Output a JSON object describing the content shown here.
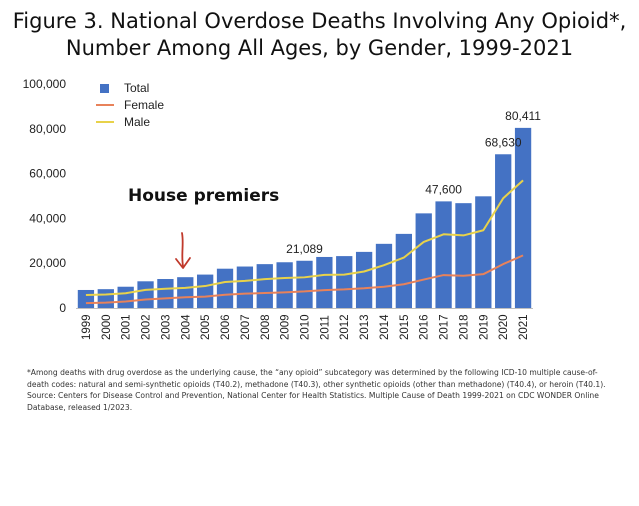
{
  "title": {
    "line1": "Figure 3. National Overdose Deaths Involving Any Opioid*,",
    "line2": "Number Among All Ages, by Gender, 1999-2021"
  },
  "annotation": "House premiers",
  "footnote": "*Among deaths with drug overdose as the underlying cause, the “any opioid” subcategory was determined by the following ICD-10 multiple cause-of-death codes: natural and semi-synthetic opioids (T40.2), methadone (T40.3), other synthetic opioids (other than methadone) (T40.4), or heroin (T40.1). Source: Centers for Disease Control and Prevention, National Center for Health Statistics. Multiple Cause of Death 1999-2021 on CDC WONDER Online Database, released 1/2023.",
  "colors": {
    "total": "#4472C4",
    "female": "#E8825A",
    "male": "#E8D24A",
    "arrow": "#C0392B"
  },
  "chart_data": {
    "type": "bar",
    "categories": [
      "1999",
      "2000",
      "2001",
      "2002",
      "2003",
      "2004",
      "2005",
      "2006",
      "2007",
      "2008",
      "2009",
      "2010",
      "2011",
      "2012",
      "2013",
      "2014",
      "2015",
      "2016",
      "2017",
      "2018",
      "2019",
      "2020",
      "2021"
    ],
    "series": [
      {
        "name": "Total",
        "kind": "bar",
        "values": [
          8048,
          8407,
          9496,
          11920,
          12940,
          13756,
          14918,
          17545,
          18516,
          19582,
          20422,
          21089,
          22784,
          23166,
          25052,
          28647,
          33091,
          42249,
          47600,
          46802,
          49860,
          68630,
          80411
        ]
      },
      {
        "name": "Female",
        "kind": "line",
        "values": [
          2200,
          2400,
          2900,
          3800,
          4300,
          4800,
          5100,
          5900,
          6400,
          6700,
          7000,
          7400,
          8000,
          8300,
          8800,
          9500,
          10600,
          12700,
          14700,
          14400,
          15100,
          19600,
          23500
        ]
      },
      {
        "name": "Male",
        "kind": "line",
        "values": [
          5800,
          6000,
          6600,
          8100,
          8600,
          9000,
          9800,
          11600,
          12100,
          12900,
          13400,
          13700,
          14800,
          14900,
          16300,
          19100,
          22500,
          29500,
          32900,
          32400,
          34700,
          49000,
          57000
        ]
      }
    ],
    "data_labels": [
      {
        "category": "2010",
        "text": "21,089"
      },
      {
        "category": "2017",
        "text": "47,600"
      },
      {
        "category": "2020",
        "text": "68,630"
      },
      {
        "category": "2021",
        "text": "80,411"
      }
    ],
    "y_ticks": [
      "0",
      "20,000",
      "40,000",
      "60,000",
      "80,000",
      "100,000"
    ],
    "ylim": [
      0,
      100000
    ],
    "legend": [
      "Total",
      "Female",
      "Male"
    ],
    "legend_position": "top-left",
    "xlabel": "",
    "ylabel": ""
  }
}
